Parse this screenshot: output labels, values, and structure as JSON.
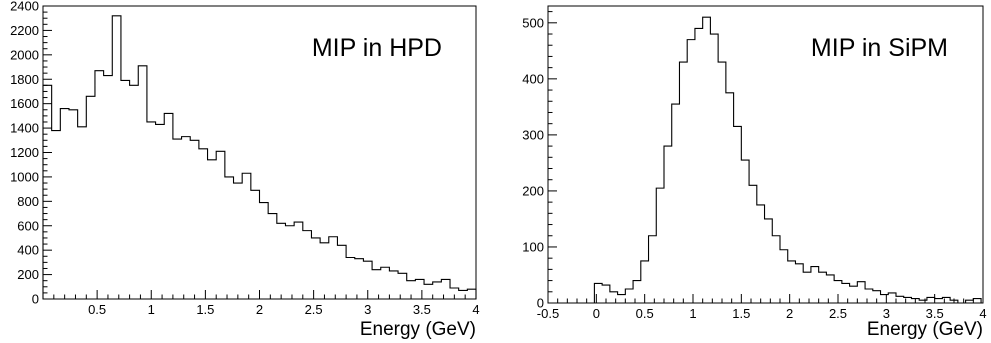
{
  "chart_data": [
    {
      "type": "histogram",
      "title": "MIP in HPD",
      "xlabel": "Energy (GeV)",
      "ylabel": "",
      "xlim": [
        0.0,
        4.0
      ],
      "ylim": [
        0,
        2400
      ],
      "grid": false,
      "legend": "none",
      "x_ticks": [
        "0.5",
        "1",
        "1.5",
        "2",
        "2.5",
        "3",
        "3.5",
        "4"
      ],
      "x_tick_values": [
        0.5,
        1,
        1.5,
        2,
        2.5,
        3,
        3.5,
        4
      ],
      "y_ticks": [
        "0",
        "200",
        "400",
        "600",
        "800",
        "1000",
        "1200",
        "1400",
        "1600",
        "1800",
        "2000",
        "2200",
        "2400"
      ],
      "y_tick_values": [
        0,
        200,
        400,
        600,
        800,
        1000,
        1200,
        1400,
        1600,
        1800,
        2000,
        2200,
        2400
      ],
      "bin_edges": [
        0.0,
        0.08,
        0.16,
        0.24,
        0.32,
        0.4,
        0.48,
        0.56,
        0.64,
        0.72,
        0.8,
        0.88,
        0.96,
        1.04,
        1.12,
        1.2,
        1.28,
        1.36,
        1.44,
        1.52,
        1.6,
        1.68,
        1.76,
        1.84,
        1.92,
        2.0,
        2.08,
        2.16,
        2.24,
        2.32,
        2.4,
        2.48,
        2.56,
        2.64,
        2.72,
        2.8,
        2.88,
        2.96,
        3.04,
        3.12,
        3.2,
        3.28,
        3.36,
        3.44,
        3.52,
        3.6,
        3.68,
        3.76,
        3.84,
        3.92,
        4.0
      ],
      "values": [
        1750,
        1380,
        1560,
        1550,
        1410,
        1660,
        1870,
        1830,
        2320,
        1790,
        1750,
        1910,
        1450,
        1430,
        1520,
        1310,
        1330,
        1300,
        1230,
        1140,
        1210,
        1000,
        950,
        1030,
        890,
        790,
        700,
        620,
        600,
        630,
        560,
        500,
        460,
        510,
        440,
        340,
        330,
        310,
        240,
        260,
        230,
        210,
        150,
        160,
        120,
        140,
        160,
        90,
        70,
        80
      ],
      "line_color": "#000000"
    },
    {
      "type": "histogram",
      "title": "MIP in SiPM",
      "xlabel": "Energy (GeV)",
      "ylabel": "",
      "xlim": [
        -0.5,
        4.0
      ],
      "ylim": [
        0,
        530
      ],
      "grid": false,
      "legend": "none",
      "x_ticks": [
        "-0.5",
        "0",
        "0.5",
        "1",
        "1.5",
        "2",
        "2.5",
        "3",
        "3.5",
        "4"
      ],
      "x_tick_values": [
        -0.5,
        0,
        0.5,
        1,
        1.5,
        2,
        2.5,
        3,
        3.5,
        4
      ],
      "y_ticks": [
        "0",
        "100",
        "200",
        "300",
        "400",
        "500"
      ],
      "y_tick_values": [
        0,
        100,
        200,
        300,
        400,
        500
      ],
      "bin_edges": [
        -0.5,
        -0.42,
        -0.34,
        -0.26,
        -0.18,
        -0.1,
        -0.02,
        0.06,
        0.14,
        0.22,
        0.3,
        0.38,
        0.46,
        0.54,
        0.62,
        0.7,
        0.78,
        0.86,
        0.94,
        1.02,
        1.1,
        1.18,
        1.26,
        1.34,
        1.42,
        1.5,
        1.58,
        1.66,
        1.74,
        1.82,
        1.9,
        1.98,
        2.06,
        2.14,
        2.22,
        2.3,
        2.38,
        2.46,
        2.54,
        2.62,
        2.7,
        2.78,
        2.86,
        2.94,
        3.02,
        3.1,
        3.18,
        3.26,
        3.34,
        3.42,
        3.5,
        3.58,
        3.66,
        3.74,
        3.82,
        3.9,
        3.98
      ],
      "values": [
        0,
        0,
        0,
        0,
        0,
        0,
        35,
        32,
        20,
        15,
        25,
        40,
        75,
        120,
        205,
        280,
        355,
        430,
        470,
        490,
        510,
        480,
        430,
        375,
        315,
        255,
        210,
        175,
        150,
        120,
        95,
        75,
        70,
        55,
        65,
        55,
        50,
        40,
        35,
        30,
        38,
        25,
        22,
        15,
        18,
        12,
        10,
        8,
        5,
        10,
        8,
        10,
        5,
        0,
        5,
        8
      ],
      "line_color": "#000000"
    }
  ]
}
